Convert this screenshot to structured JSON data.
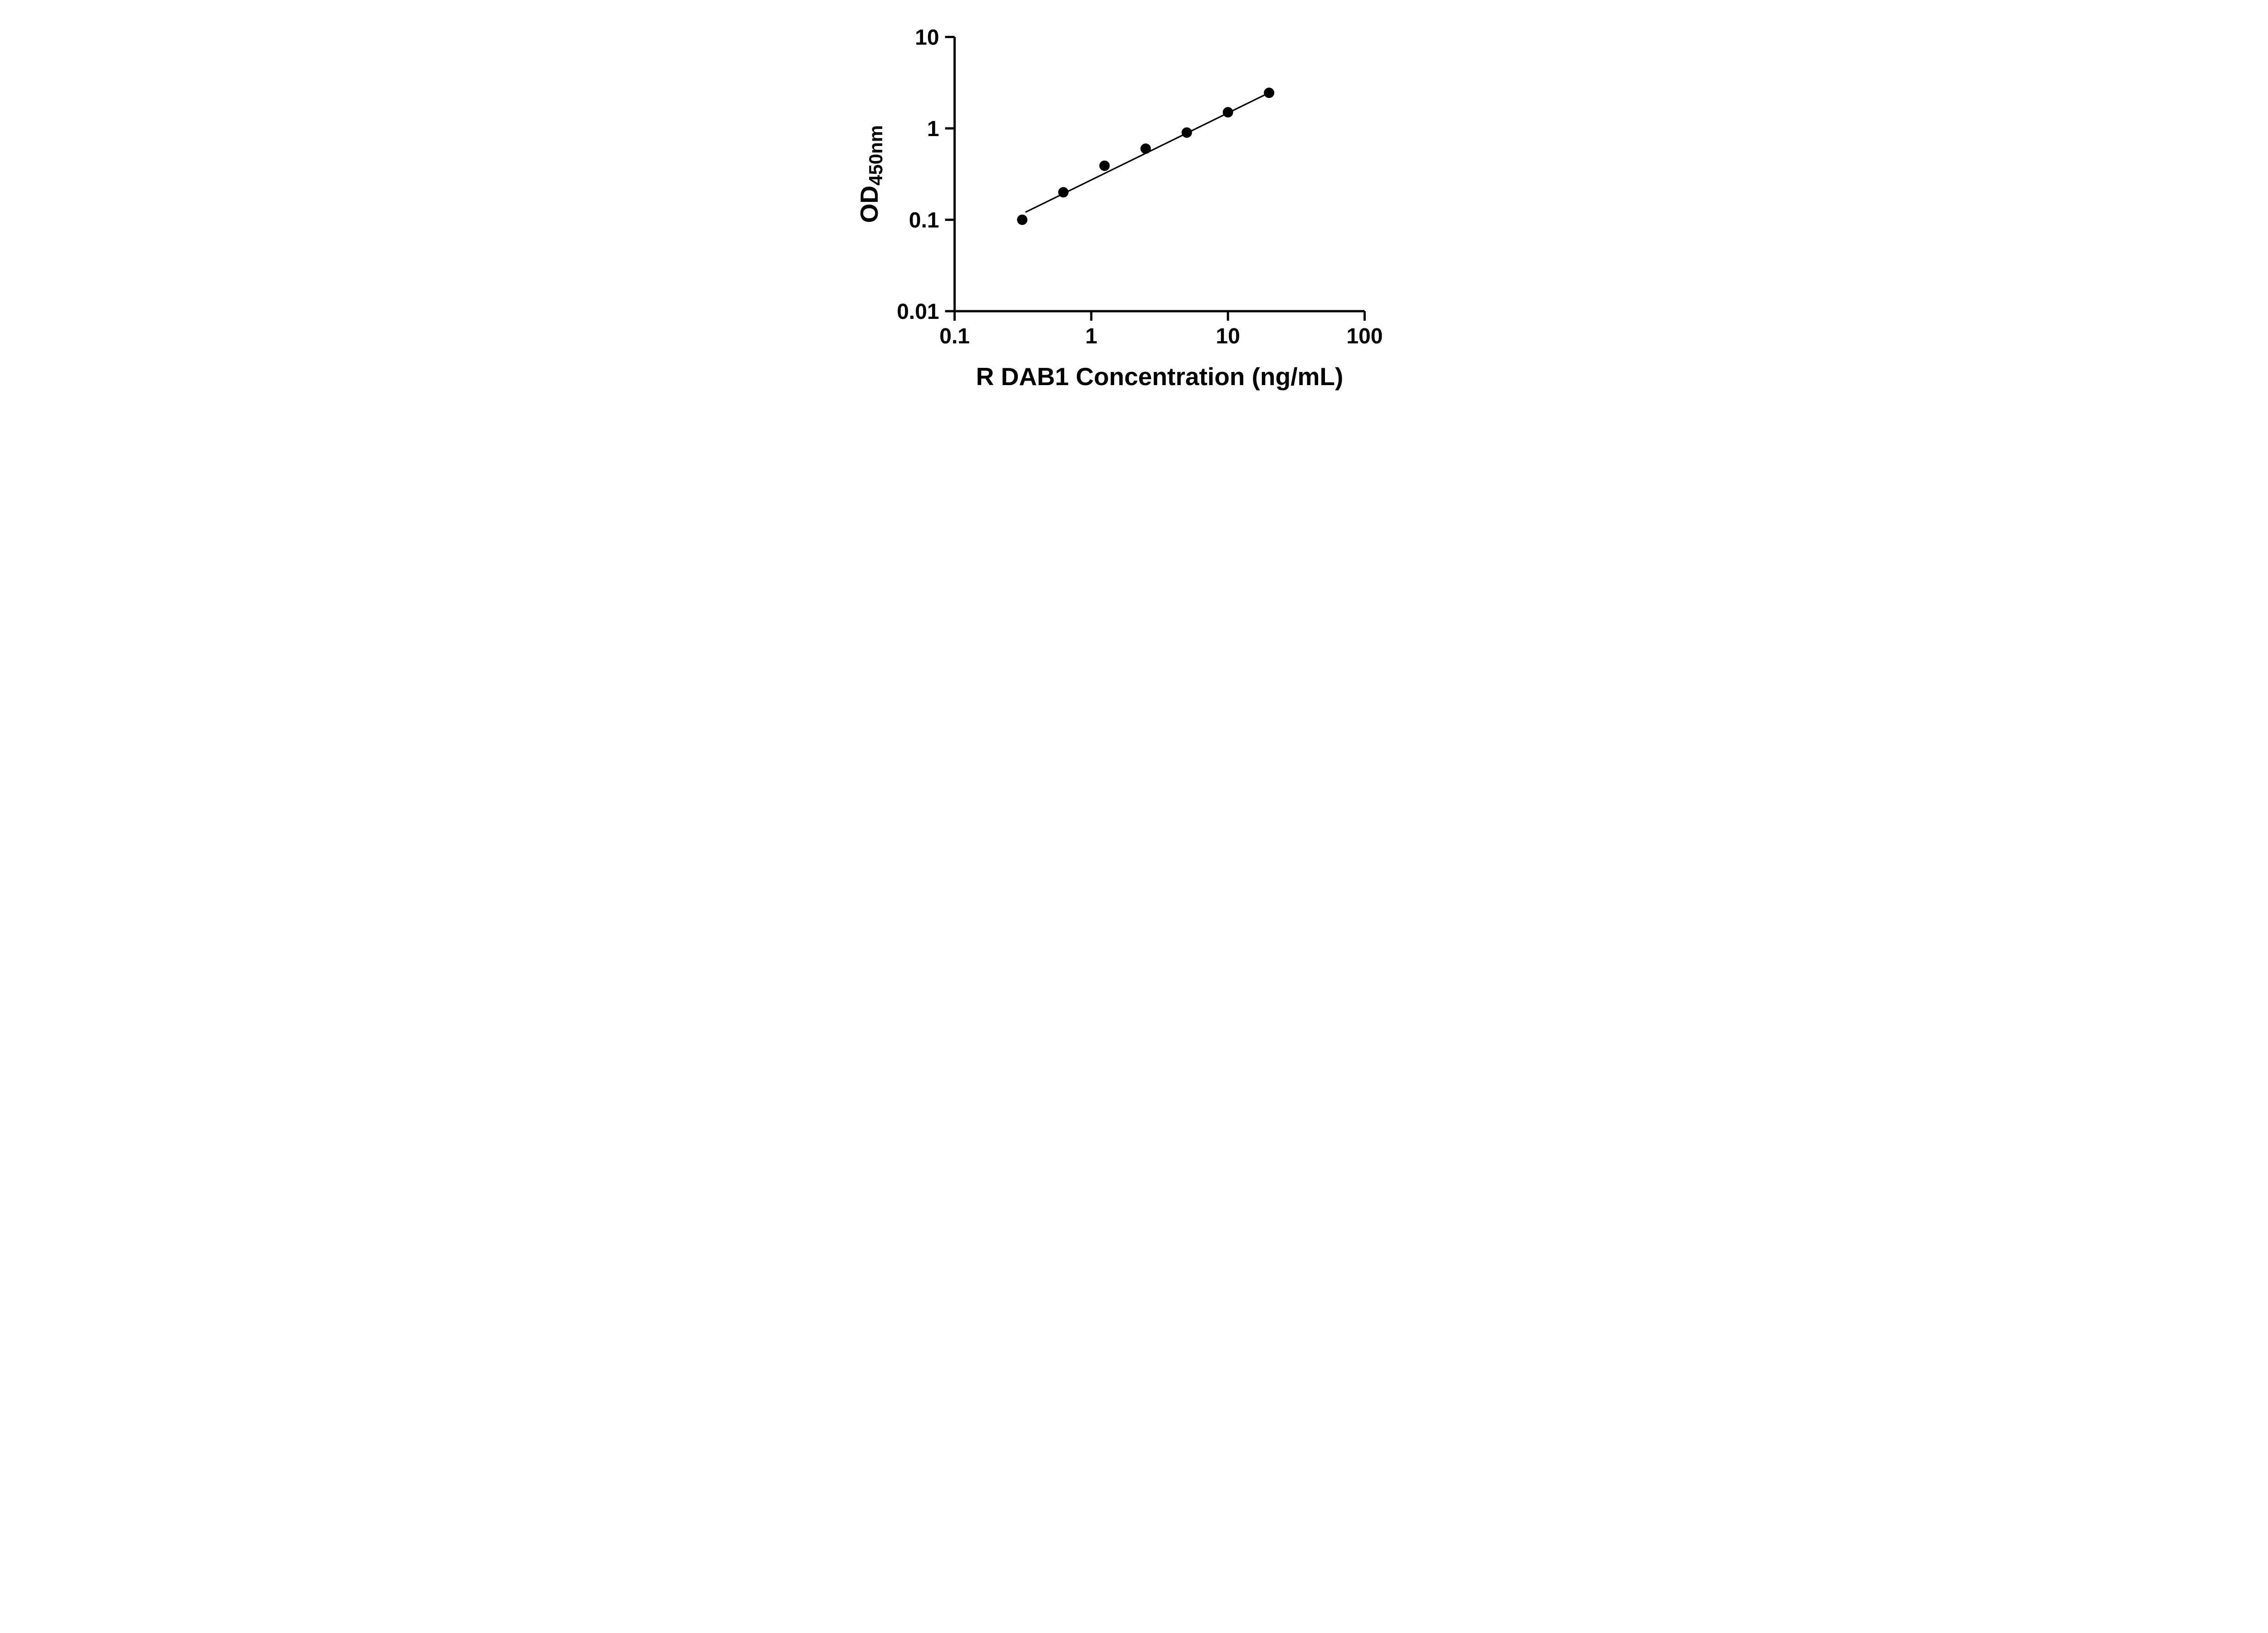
{
  "chart_data": {
    "type": "scatter",
    "title": "",
    "xlabel": "R DAB1 Concentration (ng/mL)",
    "ylabel": "OD",
    "ylabel_subscript": "450nm",
    "x_scale": "log",
    "y_scale": "log",
    "xlim": [
      0.1,
      100
    ],
    "ylim": [
      0.01,
      10
    ],
    "grid": false,
    "legend": "none",
    "x_ticks": [
      {
        "value": 0.1,
        "label": "0.1"
      },
      {
        "value": 1,
        "label": "1"
      },
      {
        "value": 10,
        "label": "10"
      },
      {
        "value": 100,
        "label": "100"
      }
    ],
    "y_ticks": [
      {
        "value": 0.01,
        "label": "0.01"
      },
      {
        "value": 0.1,
        "label": "0.1"
      },
      {
        "value": 1,
        "label": "1"
      },
      {
        "value": 10,
        "label": "10"
      }
    ],
    "series": [
      {
        "name": "standard-curve-points",
        "marker": "filled-circle",
        "x": [
          0.3125,
          0.625,
          1.25,
          2.5,
          5,
          10,
          20
        ],
        "y": [
          0.1,
          0.2,
          0.39,
          0.6,
          0.9,
          1.5,
          2.45
        ]
      }
    ],
    "trend_line": {
      "x1": 0.33,
      "y1": 0.121,
      "x2": 20,
      "y2": 2.45
    },
    "marker_color": "#000000",
    "line_color": "#000000",
    "axis_color": "#000000",
    "background_color": "#ffffff"
  }
}
